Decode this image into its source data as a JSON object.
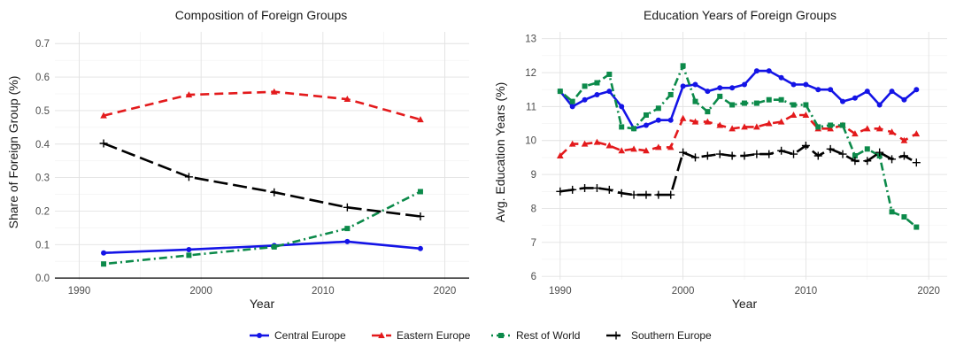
{
  "legend": [
    {
      "name": "Central Europe",
      "color": "#1414e6",
      "dash": "solid",
      "marker": "circle"
    },
    {
      "name": "Eastern Europe",
      "color": "#e31a1c",
      "dash": "dash",
      "marker": "triangle"
    },
    {
      "name": "Rest of World",
      "color": "#0c8a4a",
      "dash": "dotdash",
      "marker": "square"
    },
    {
      "name": "Southern Europe",
      "color": "#000000",
      "dash": "longdash",
      "marker": "plus"
    }
  ],
  "chart_data": [
    {
      "type": "line",
      "title": "Composition of Foreign Groups",
      "xlabel": "Year",
      "ylabel": "Share of Foreign Group (%)",
      "xlim": [
        1988,
        2022
      ],
      "ylim": [
        -0.005,
        0.735
      ],
      "xticks": [
        1990,
        2000,
        2010,
        2020
      ],
      "yticks": [
        0.0,
        0.1,
        0.2,
        0.3,
        0.4,
        0.5,
        0.6,
        0.7
      ],
      "ytick_labels": [
        "0.0",
        "0.1",
        "0.2",
        "0.3",
        "0.4",
        "0.5",
        "0.6",
        "0.7"
      ],
      "grid": true,
      "zero_line": true,
      "series": [
        {
          "name": "Central Europe",
          "x": [
            1992,
            1999,
            2006,
            2012,
            2018
          ],
          "y": [
            0.075,
            0.085,
            0.097,
            0.109,
            0.088
          ]
        },
        {
          "name": "Eastern Europe",
          "x": [
            1992,
            1999,
            2006,
            2012,
            2018
          ],
          "y": [
            0.485,
            0.547,
            0.556,
            0.534,
            0.473
          ]
        },
        {
          "name": "Rest of World",
          "x": [
            1992,
            1999,
            2006,
            2012,
            2018
          ],
          "y": [
            0.042,
            0.068,
            0.093,
            0.148,
            0.258
          ]
        },
        {
          "name": "Southern Europe",
          "x": [
            1992,
            1999,
            2006,
            2012,
            2018
          ],
          "y": [
            0.402,
            0.302,
            0.256,
            0.211,
            0.184
          ]
        }
      ]
    },
    {
      "type": "line",
      "title": "Education Years of Foreign Groups",
      "xlabel": "Year",
      "ylabel": "Avg. Education Years (%)",
      "xlim": [
        1988.5,
        2021.5
      ],
      "ylim": [
        5.9,
        13.2
      ],
      "xticks": [
        1990,
        2000,
        2010,
        2020
      ],
      "yticks": [
        6,
        7,
        8,
        9,
        10,
        11,
        12,
        13
      ],
      "ytick_labels": [
        "6",
        "7",
        "8",
        "9",
        "10",
        "11",
        "12",
        "13"
      ],
      "grid": true,
      "zero_line": false,
      "x": [
        1990,
        1991,
        1992,
        1993,
        1994,
        1995,
        1996,
        1997,
        1998,
        1999,
        2000,
        2001,
        2002,
        2003,
        2004,
        2005,
        2006,
        2007,
        2008,
        2009,
        2010,
        2011,
        2012,
        2013,
        2014,
        2015,
        2016,
        2017,
        2018,
        2019
      ],
      "series": [
        {
          "name": "Central Europe",
          "y": [
            11.45,
            11.0,
            11.2,
            11.35,
            11.45,
            11.0,
            10.35,
            10.45,
            10.6,
            10.6,
            11.6,
            11.65,
            11.45,
            11.55,
            11.55,
            11.65,
            12.05,
            12.05,
            11.85,
            11.65,
            11.65,
            11.5,
            11.5,
            11.15,
            11.25,
            11.45,
            11.05,
            11.45,
            11.2,
            11.5
          ]
        },
        {
          "name": "Eastern Europe",
          "y": [
            9.55,
            9.9,
            9.9,
            9.95,
            9.85,
            9.7,
            9.75,
            9.7,
            9.8,
            9.8,
            10.65,
            10.55,
            10.55,
            10.45,
            10.35,
            10.4,
            10.4,
            10.5,
            10.55,
            10.75,
            10.75,
            10.35,
            10.35,
            10.45,
            10.2,
            10.35,
            10.35,
            10.25,
            10.0,
            10.2
          ]
        },
        {
          "name": "Rest of World",
          "y": [
            11.45,
            11.15,
            11.6,
            11.7,
            11.95,
            10.4,
            10.35,
            10.75,
            10.95,
            11.35,
            12.2,
            11.15,
            10.85,
            11.3,
            11.05,
            11.1,
            11.1,
            11.2,
            11.2,
            11.05,
            11.05,
            10.4,
            10.45,
            10.45,
            9.55,
            9.75,
            9.55,
            7.9,
            7.75,
            7.45
          ]
        },
        {
          "name": "Southern Europe",
          "y": [
            8.5,
            8.55,
            8.6,
            8.6,
            8.55,
            8.45,
            8.4,
            8.4,
            8.4,
            8.4,
            9.65,
            9.5,
            9.55,
            9.6,
            9.55,
            9.55,
            9.6,
            9.6,
            9.7,
            9.6,
            9.85,
            9.55,
            9.75,
            9.6,
            9.4,
            9.4,
            9.65,
            9.45,
            9.55,
            9.35
          ]
        }
      ]
    }
  ]
}
